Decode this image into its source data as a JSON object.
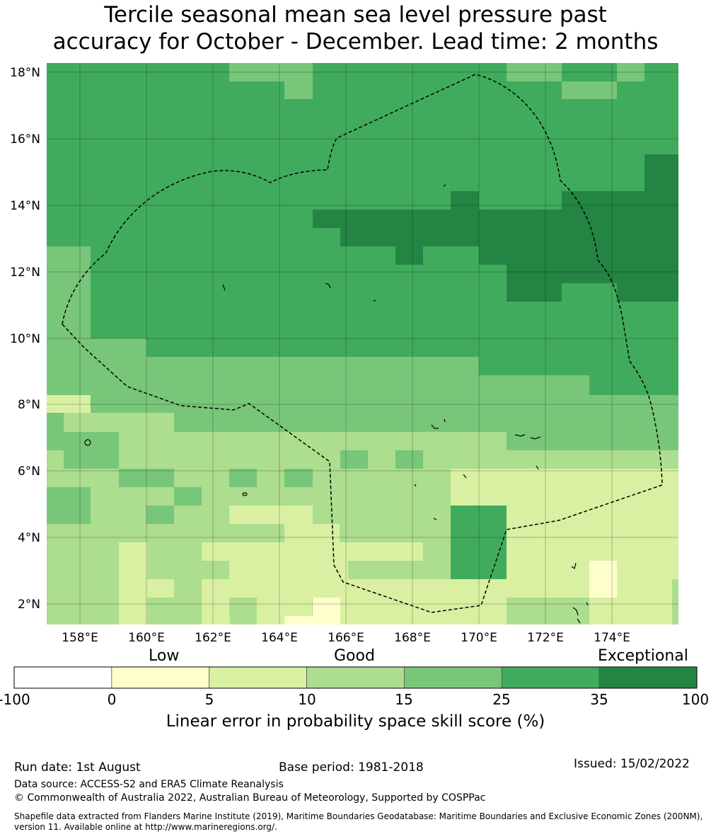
{
  "title_line1": "Tercile seasonal mean sea level pressure past",
  "title_line2": "accuracy for October - December. Lead time: 2 months",
  "map": {
    "lat_labels": [
      "18°N",
      "16°N",
      "14°N",
      "12°N",
      "10°N",
      "8°N",
      "6°N",
      "4°N",
      "2°N"
    ],
    "lon_labels": [
      "158°E",
      "160°E",
      "162°E",
      "164°E",
      "166°E",
      "168°E",
      "170°E",
      "172°E",
      "174°E"
    ],
    "region": "Marshall Islands EEZ (dashed boundary)"
  },
  "colorbar": {
    "category_labels": [
      "Low",
      "Good",
      "Exceptional"
    ],
    "ticks": [
      "-100",
      "0",
      "5",
      "10",
      "15",
      "25",
      "35",
      "100"
    ],
    "colors": [
      "#ffffff",
      "#ffffcc",
      "#d9f0a3",
      "#addd8e",
      "#78c679",
      "#41ab5d",
      "#238443"
    ],
    "title": "Linear error in probability space skill score (%)"
  },
  "footer": {
    "run_date": "Run date: 1st August",
    "base_period": "Base period: 1981-2018",
    "issued": "Issued: 15/02/2022",
    "data_source": "Data source: ACCESS-S2 and ERA5 Climate Reanalysis",
    "copyright": "© Commonwealth of Australia 2022, Australian Bureau of Meteorology, Supported by COSPPac",
    "shapefile_line1": "Shapefile data extracted from Flanders Marine Institute (2019), Maritime Boundaries Geodatabase: Maritime Boundaries and Exclusive Economic Zones (200NM),",
    "shapefile_line2": "version 11. Available online at http://www.marineregions.org/."
  }
}
